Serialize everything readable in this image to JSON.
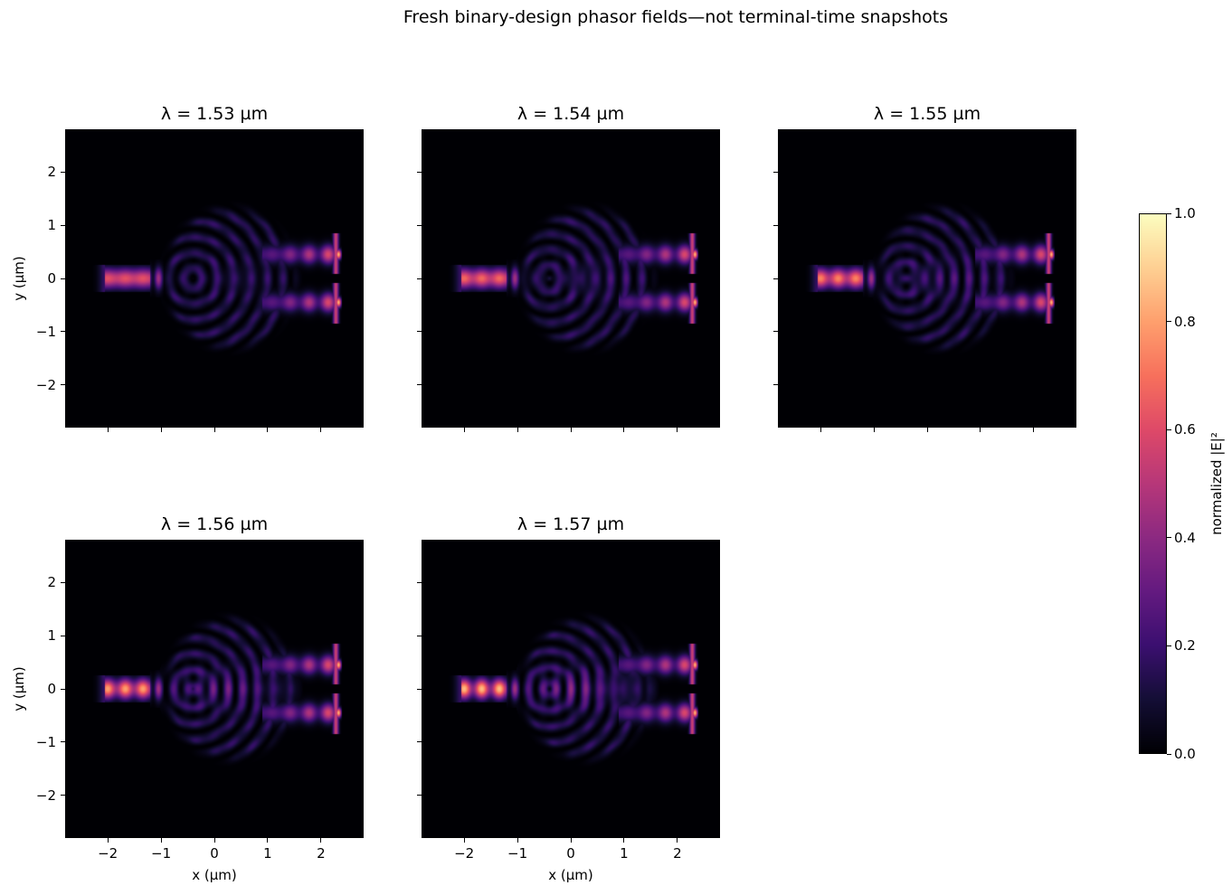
{
  "figure": {
    "suptitle": "Fresh binary-design phasor fields—not terminal-time snapshots"
  },
  "chart_data": {
    "type": "heatmap",
    "colormap": "magma",
    "xlabel": "x (µm)",
    "ylabel": "y (µm)",
    "xlim": [
      -2.8,
      2.8
    ],
    "ylim": [
      -2.8,
      2.8
    ],
    "xticks": [
      -2,
      -1,
      0,
      1,
      2
    ],
    "yticks": [
      -2,
      -1,
      0,
      1,
      2
    ],
    "xticklabels": [
      "−2",
      "−1",
      "0",
      "1",
      "2"
    ],
    "yticklabels": [
      "−2",
      "−1",
      "0",
      "1",
      "2"
    ],
    "panels": [
      {
        "title": "λ = 1.53 µm",
        "wavelength_um": 1.53
      },
      {
        "title": "λ = 1.54 µm",
        "wavelength_um": 1.54
      },
      {
        "title": "λ = 1.55 µm",
        "wavelength_um": 1.55
      },
      {
        "title": "λ = 1.56 µm",
        "wavelength_um": 1.56
      },
      {
        "title": "λ = 1.57 µm",
        "wavelength_um": 1.57
      }
    ],
    "colorbar": {
      "label": "normalized |E|²",
      "range": [
        0.0,
        1.0
      ],
      "ticks": [
        0.0,
        0.2,
        0.4,
        0.6,
        0.8,
        1.0
      ],
      "ticklabels": [
        "0.0",
        "0.2",
        "0.4",
        "0.6",
        "0.8",
        "1.0"
      ]
    },
    "grid": false
  }
}
